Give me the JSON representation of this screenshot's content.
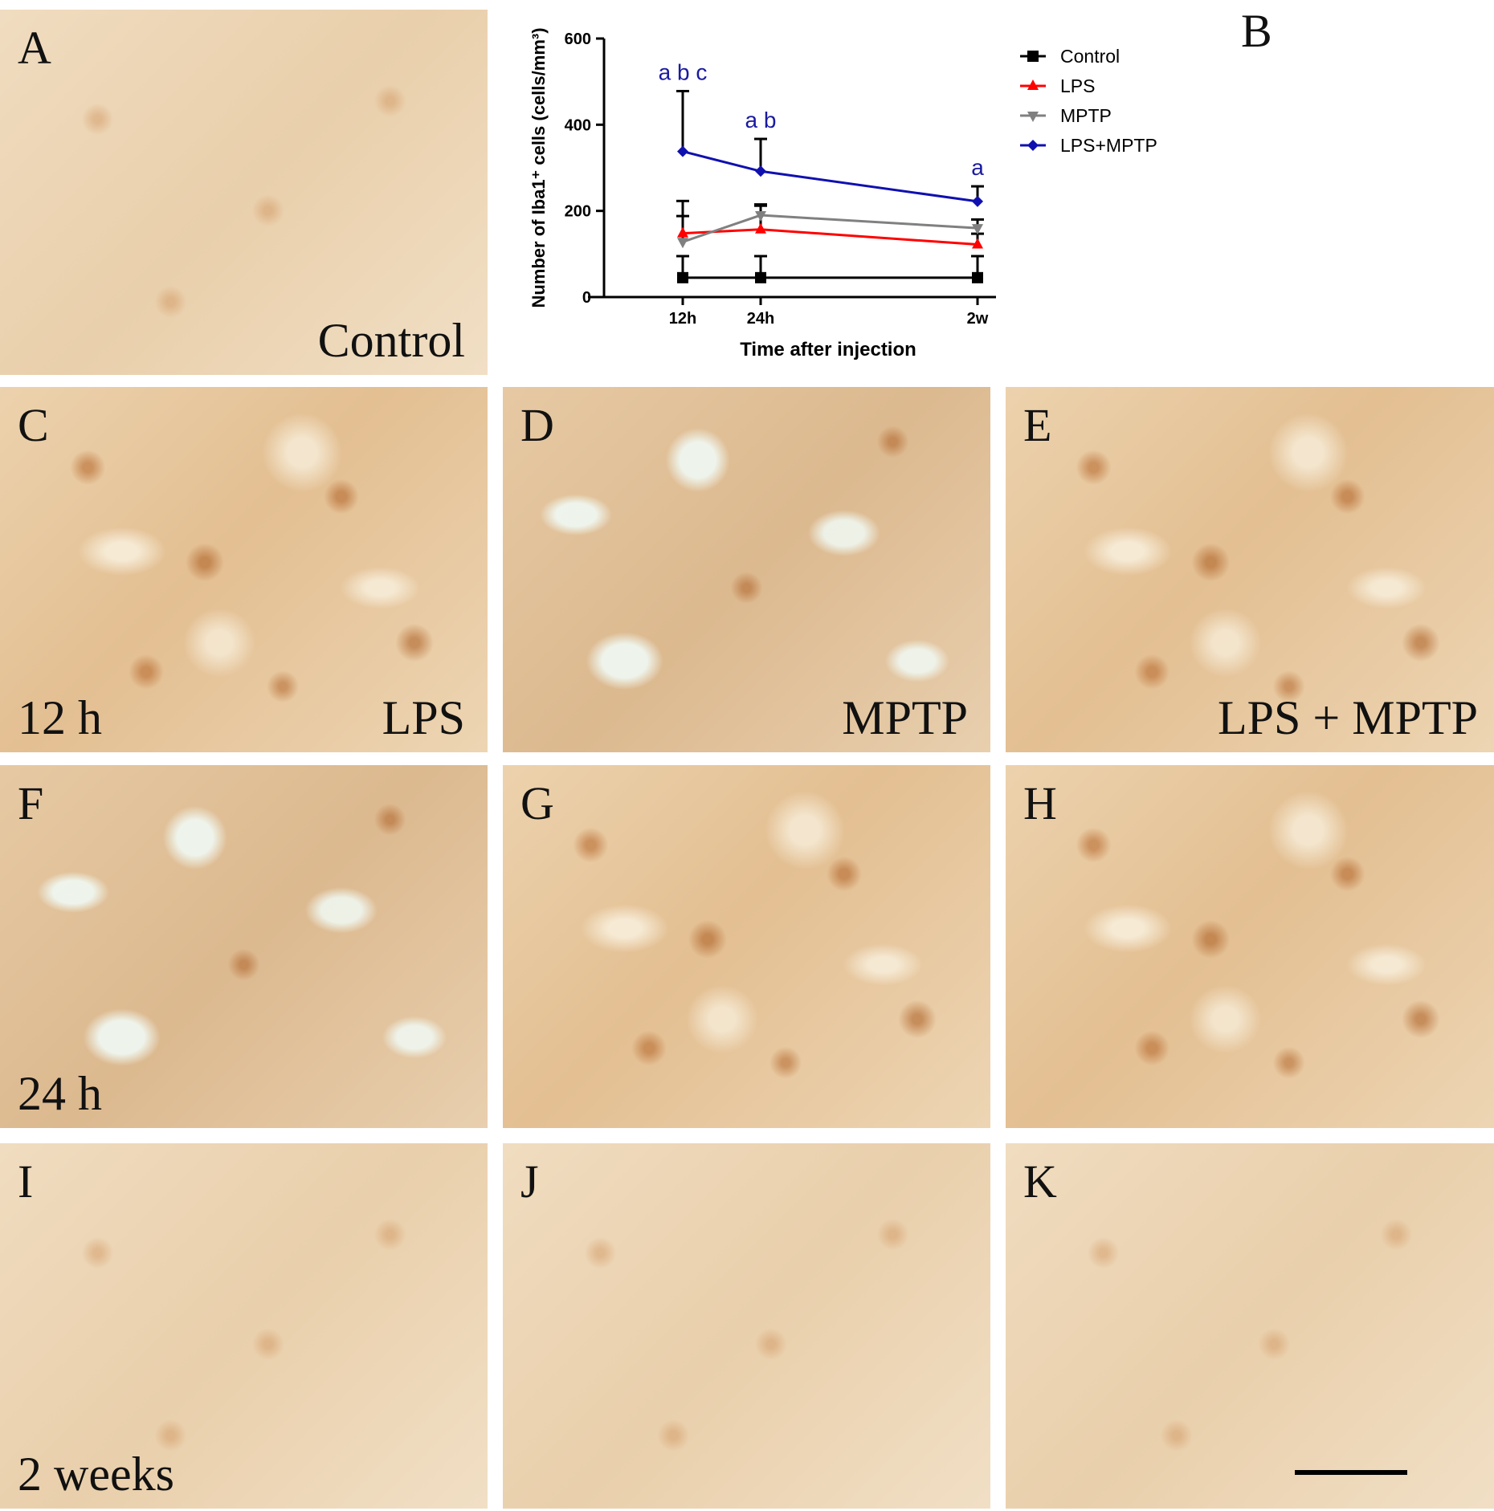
{
  "panels": {
    "A": {
      "letter": "A",
      "label": "Control"
    },
    "B": {
      "letter": "B"
    },
    "C": {
      "letter": "C",
      "time": "12 h",
      "label": "LPS"
    },
    "D": {
      "letter": "D",
      "label": "MPTP"
    },
    "E": {
      "letter": "E",
      "label": "LPS + MPTP"
    },
    "F": {
      "letter": "F",
      "time": "24 h"
    },
    "G": {
      "letter": "G"
    },
    "H": {
      "letter": "H"
    },
    "I": {
      "letter": "I",
      "time": "2 weeks"
    },
    "J": {
      "letter": "J"
    },
    "K": {
      "letter": "K"
    }
  },
  "chart_data": {
    "type": "line",
    "title": "",
    "xlabel": "Time after injection",
    "ylabel": "Number of Iba1⁺ cells (cells/mm³)",
    "x_ticks": [
      "12h",
      "24h",
      "2w"
    ],
    "ylim": [
      0,
      600
    ],
    "y_ticks": [
      "0",
      "200",
      "400",
      "600"
    ],
    "legend_position": "top-right",
    "series": [
      {
        "name": "Control",
        "color": "#000000",
        "marker": "square",
        "values": [
          45,
          45,
          45
        ],
        "error": [
          50,
          50,
          50
        ]
      },
      {
        "name": "LPS",
        "color": "#ff0000",
        "marker": "triangle-up",
        "values": [
          148,
          157,
          122
        ],
        "error": [
          75,
          55,
          25
        ]
      },
      {
        "name": "MPTP",
        "color": "#808080",
        "marker": "triangle-down",
        "values": [
          128,
          190,
          160
        ],
        "error": [
          60,
          25,
          20
        ]
      },
      {
        "name": "LPS+MPTP",
        "color": "#1010b0",
        "marker": "diamond",
        "values": [
          338,
          292,
          222
        ],
        "error": [
          140,
          75,
          35
        ]
      }
    ],
    "annotations": [
      "a b c",
      "a b",
      "a"
    ],
    "annotation_color": "#1a1aa0"
  }
}
